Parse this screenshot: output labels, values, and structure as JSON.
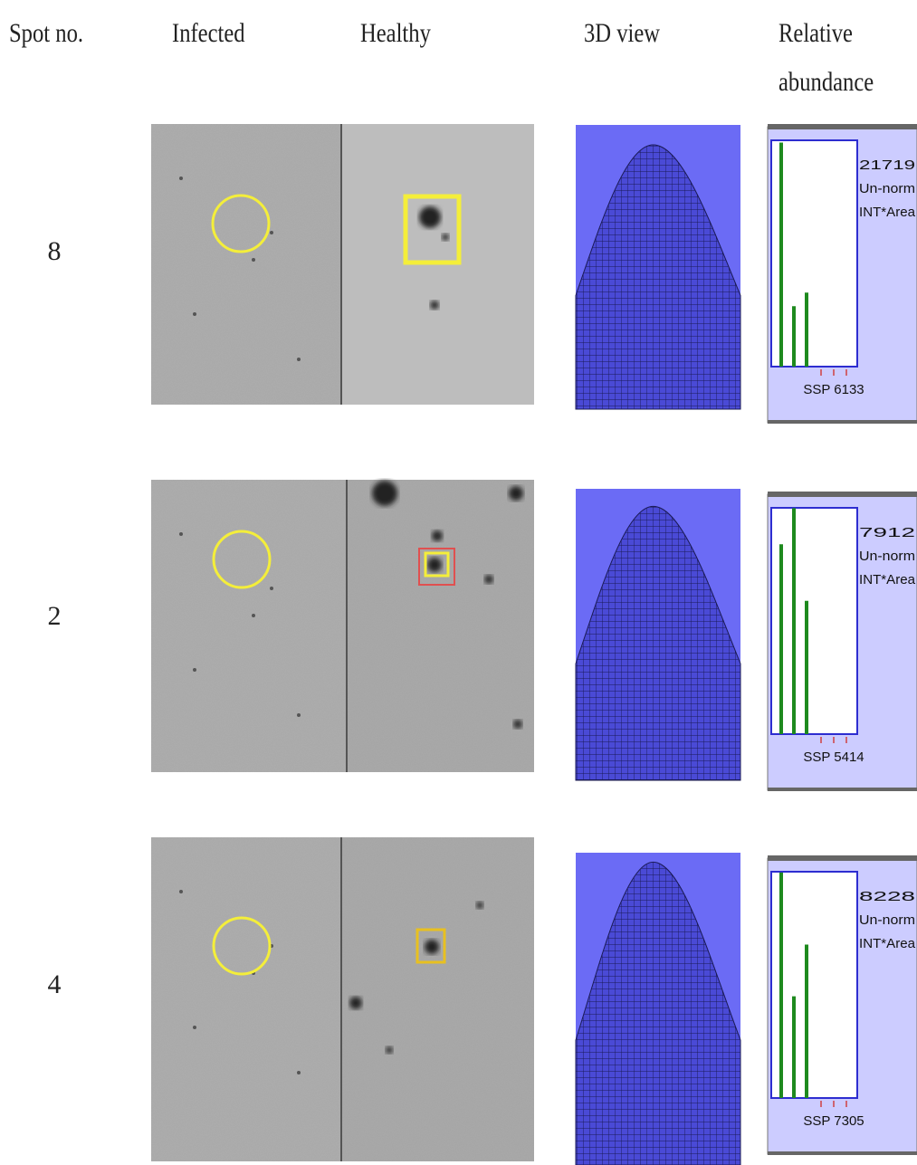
{
  "headers": {
    "spot_no": "Spot no.",
    "infected": "Infected",
    "healthy": "Healthy",
    "view_3d": "3D view",
    "relative_abundance": "Relative abundance"
  },
  "rows": [
    {
      "spot": "8",
      "panel": {
        "max": 21719,
        "values": [
          21500,
          5800,
          7100
        ],
        "unit": "Un-norm",
        "measure": "INT*Area",
        "ssp": "SSP 6133"
      }
    },
    {
      "spot": "2",
      "panel": {
        "max": 7912,
        "values": [
          6640,
          7900,
          4660
        ],
        "unit": "Un-norm",
        "measure": "INT*Area",
        "ssp": "SSP 5414"
      }
    },
    {
      "spot": "4",
      "panel": {
        "max": 8228,
        "values": [
          8200,
          3700,
          5580
        ],
        "unit": "Un-norm",
        "measure": "INT*Area",
        "ssp": "SSP 7305"
      }
    }
  ]
}
